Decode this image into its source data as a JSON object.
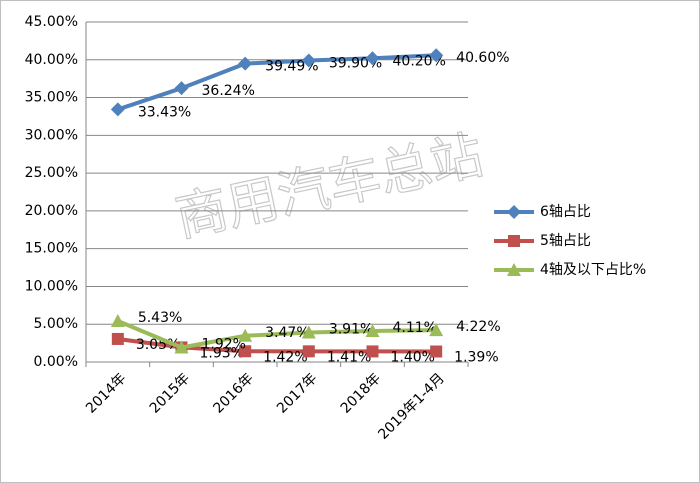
{
  "chart_data": {
    "type": "line",
    "watermark": "商用汽车总站",
    "categories": [
      "2014年",
      "2015年",
      "2016年",
      "2017年",
      "2018年",
      "2019年1-4月"
    ],
    "series": [
      {
        "name": "6轴占比",
        "color": "#4f81bd",
        "marker": "diamond",
        "values": [
          33.43,
          36.24,
          39.49,
          39.9,
          40.2,
          40.6
        ],
        "value_labels": [
          "33.43%",
          "36.24%",
          "39.49%",
          "39.90%",
          "40.20%",
          "40.60%"
        ]
      },
      {
        "name": "5轴占比",
        "color": "#c0504d",
        "marker": "square",
        "values": [
          3.05,
          1.93,
          1.42,
          1.41,
          1.4,
          1.39
        ],
        "value_labels": [
          "3.05%",
          "1.93%",
          "1.42%",
          "1.41%",
          "1.40%",
          "1.39%"
        ]
      },
      {
        "name": "4轴及以下占比%",
        "color": "#9bbb59",
        "marker": "triangle",
        "values": [
          5.43,
          1.92,
          3.47,
          3.91,
          4.11,
          4.22
        ],
        "value_labels": [
          "5.43%",
          "1.92%",
          "3.47%",
          "3.91%",
          "4.11%",
          "4.22%"
        ]
      }
    ],
    "ylim": [
      0,
      45
    ],
    "yticks": [
      {
        "value": 0,
        "label": "0.00%"
      },
      {
        "value": 5,
        "label": "5.00%"
      },
      {
        "value": 10,
        "label": "10.00%"
      },
      {
        "value": 15,
        "label": "15.00%"
      },
      {
        "value": 20,
        "label": "20.00%"
      },
      {
        "value": 25,
        "label": "25.00%"
      },
      {
        "value": 30,
        "label": "30.00%"
      },
      {
        "value": 35,
        "label": "35.00%"
      },
      {
        "value": 40,
        "label": "40.00%"
      },
      {
        "value": 45,
        "label": "45.00%"
      }
    ],
    "grid": true,
    "legend": "right"
  }
}
